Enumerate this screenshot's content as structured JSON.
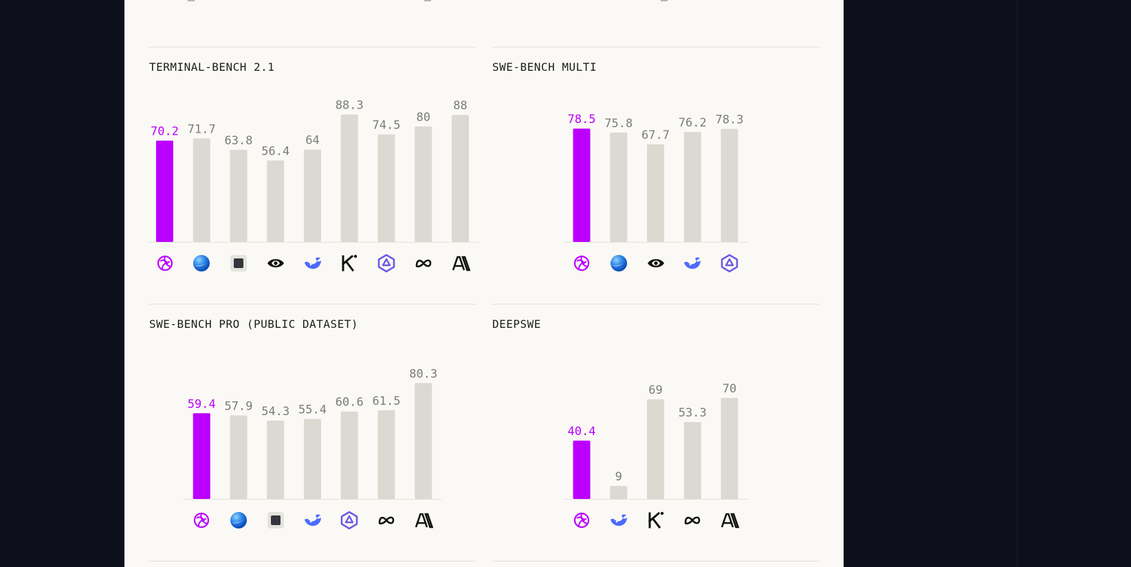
{
  "colors": {
    "highlight": "#bb00ff",
    "bar": "#dbd9d2",
    "label": "#7b7b7b",
    "baseline": "#e3e1da",
    "title": "#1c1c1c"
  },
  "chart_data": [
    {
      "type": "bar",
      "title": "TERMINAL-BENCH 2.1",
      "categories": [
        "model-1",
        "model-2",
        "model-3",
        "model-4",
        "model-5",
        "model-6",
        "model-7",
        "model-8",
        "model-9"
      ],
      "icons": [
        "swirl-logo-icon",
        "blue-sphere-logo-icon",
        "dark-square-logo-icon",
        "nvidia-logo-icon",
        "deepseek-whale-logo-icon",
        "kimi-logo-icon",
        "qwen-logo-icon",
        "meta-logo-icon",
        "anthropic-logo-icon"
      ],
      "values": [
        70.2,
        71.7,
        63.8,
        56.4,
        64,
        88.3,
        74.5,
        80,
        88
      ],
      "highlight_index": 0,
      "ylim": [
        0,
        100
      ]
    },
    {
      "type": "bar",
      "title": "SWE-BENCH MULTI",
      "categories": [
        "model-1",
        "model-2",
        "model-4",
        "model-5",
        "model-7"
      ],
      "icons": [
        "swirl-logo-icon",
        "blue-sphere-logo-icon",
        "nvidia-logo-icon",
        "deepseek-whale-logo-icon",
        "qwen-logo-icon"
      ],
      "values": [
        78.5,
        75.8,
        67.7,
        76.2,
        78.3
      ],
      "highlight_index": 0,
      "ylim": [
        0,
        100
      ]
    },
    {
      "type": "bar",
      "title": "SWE-BENCH PRO (PUBLIC DATASET)",
      "categories": [
        "model-1",
        "model-2",
        "model-3",
        "model-5",
        "model-7",
        "model-8",
        "model-9"
      ],
      "icons": [
        "swirl-logo-icon",
        "blue-sphere-logo-icon",
        "dark-square-logo-icon",
        "deepseek-whale-logo-icon",
        "qwen-logo-icon",
        "meta-logo-icon",
        "anthropic-logo-icon"
      ],
      "values": [
        59.4,
        57.9,
        54.3,
        55.4,
        60.6,
        61.5,
        80.3
      ],
      "highlight_index": 0,
      "ylim": [
        0,
        100
      ]
    },
    {
      "type": "bar",
      "title": "DEEPSWE",
      "categories": [
        "model-1",
        "model-5",
        "model-6",
        "model-8",
        "model-9"
      ],
      "icons": [
        "swirl-logo-icon",
        "deepseek-whale-logo-icon",
        "kimi-logo-icon",
        "meta-logo-icon",
        "anthropic-logo-icon"
      ],
      "values": [
        40.4,
        9,
        69,
        53.3,
        70
      ],
      "highlight_index": 0,
      "ylim": [
        0,
        100
      ]
    }
  ]
}
